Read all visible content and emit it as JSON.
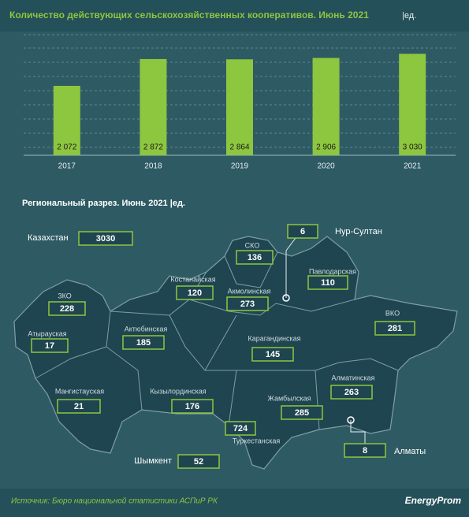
{
  "chart_data": {
    "type": "bar",
    "title": "Количество действующих сельскохозяйственных кооперативов. Июнь 2021",
    "unit": "|ед.",
    "categories": [
      "2017",
      "2018",
      "2019",
      "2020",
      "2021"
    ],
    "values": [
      2072,
      2872,
      2864,
      2906,
      3030
    ],
    "value_labels": [
      "2 072",
      "2 872",
      "2 864",
      "2 906",
      "3 030"
    ],
    "color": "#8dc63f",
    "ylim": [
      0,
      3600
    ]
  },
  "map": {
    "title": "Региональный  разрез. Июнь 2021 |ед.",
    "regions": [
      {
        "name": "Казахстан",
        "value": 3030
      },
      {
        "name": "СКО",
        "value": 136
      },
      {
        "name": "Нур-Султан",
        "value": 6
      },
      {
        "name": "Костанайская",
        "value": 120
      },
      {
        "name": "Акмолинская",
        "value": 273
      },
      {
        "name": "Павлодарская",
        "value": 110
      },
      {
        "name": "ЗКО",
        "value": 228
      },
      {
        "name": "ВКО",
        "value": 281
      },
      {
        "name": "Атырауская",
        "value": 17
      },
      {
        "name": "Актюбинская",
        "value": 185
      },
      {
        "name": "Карагандинская",
        "value": 145
      },
      {
        "name": "Мангистауская",
        "value": 21
      },
      {
        "name": "Кызылординская",
        "value": 176
      },
      {
        "name": "Жамбылская",
        "value": 285
      },
      {
        "name": "Алматинская",
        "value": 263
      },
      {
        "name": "Туркестанская",
        "value": 724
      },
      {
        "name": "Шымкент",
        "value": 52
      },
      {
        "name": "Алматы",
        "value": 8
      }
    ]
  },
  "footer": {
    "source": "Источник: Бюро национальной  статистики АСПиР РК",
    "logo": "EnergyProm"
  }
}
